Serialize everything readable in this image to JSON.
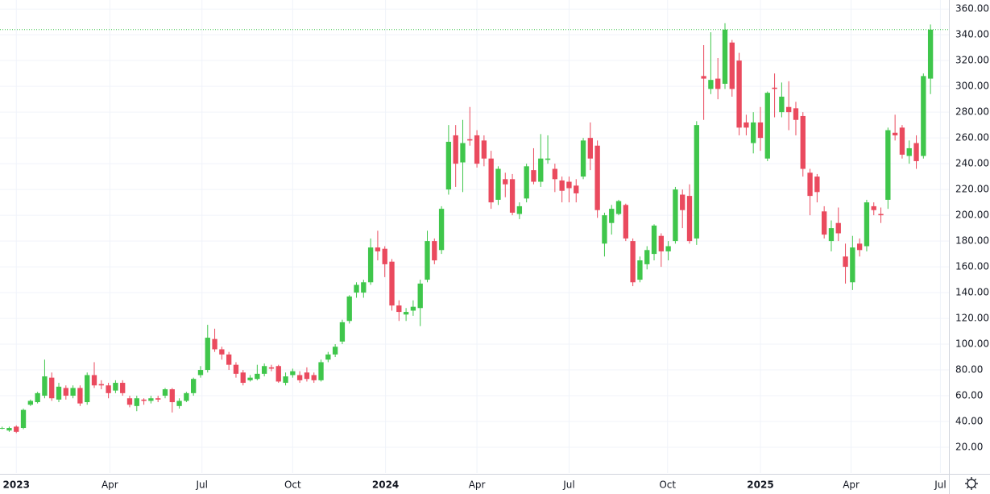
{
  "chart_data": {
    "type": "candlestick",
    "open": [
      35,
      33,
      36,
      35,
      53,
      55,
      60,
      74,
      57,
      66,
      60,
      66,
      55,
      76,
      69,
      68,
      64,
      70,
      58,
      52,
      57,
      56,
      58,
      60,
      65,
      52,
      56,
      62,
      76,
      80,
      104,
      96,
      92,
      84,
      78,
      72,
      73,
      77,
      82,
      83,
      70,
      76,
      76,
      78,
      76,
      72,
      88,
      92,
      102,
      118,
      140,
      140,
      148,
      175,
      174,
      164,
      130,
      123,
      126,
      128,
      150,
      180,
      173,
      220,
      262,
      241,
      259,
      262,
      258,
      244,
      212,
      228,
      228,
      201,
      213,
      235,
      226,
      243,
      236,
      227,
      226,
      223,
      230,
      260,
      254,
      178,
      194,
      201,
      208,
      180,
      150,
      162,
      170,
      184,
      172,
      180,
      216,
      215,
      182,
      308,
      298,
      306,
      302,
      334,
      320,
      272,
      256,
      272,
      244,
      299,
      280,
      284,
      283,
      277,
      233,
      230,
      203,
      180,
      194,
      168,
      148,
      178,
      176,
      207,
      201,
      212,
      264,
      268,
      246,
      256,
      246,
      306
    ],
    "high": [
      36,
      36,
      37,
      50,
      57,
      63,
      88,
      78,
      70,
      68,
      68,
      68,
      78,
      86,
      72,
      70,
      72,
      72,
      60,
      60,
      58,
      60,
      60,
      66,
      66,
      58,
      63,
      74,
      83,
      115,
      112,
      98,
      94,
      86,
      80,
      76,
      84,
      85,
      84,
      84,
      78,
      81,
      79,
      82,
      78,
      88,
      94,
      100,
      119,
      138,
      148,
      150,
      182,
      188,
      176,
      166,
      134,
      128,
      134,
      150,
      188,
      182,
      207,
      270,
      270,
      274,
      284,
      266,
      262,
      250,
      238,
      233,
      232,
      210,
      240,
      252,
      263,
      262,
      240,
      230,
      230,
      228,
      260,
      272,
      258,
      202,
      208,
      212,
      209,
      182,
      168,
      176,
      193,
      186,
      180,
      222,
      220,
      224,
      273,
      332,
      342,
      322,
      349,
      336,
      326,
      278,
      280,
      284,
      296,
      310,
      303,
      304,
      288,
      280,
      236,
      232,
      207,
      196,
      206,
      178,
      184,
      182,
      212,
      210,
      206,
      268,
      278,
      270,
      258,
      262,
      310,
      348
    ],
    "low": [
      34,
      32,
      31,
      34,
      52,
      54,
      58,
      56,
      55,
      57,
      58,
      52,
      53,
      66,
      65,
      58,
      62,
      60,
      51,
      48,
      53,
      54,
      55,
      58,
      47,
      50,
      55,
      60,
      74,
      78,
      94,
      88,
      80,
      74,
      68,
      71,
      72,
      75,
      79,
      70,
      68,
      74,
      70,
      71,
      70,
      71,
      86,
      90,
      100,
      116,
      136,
      136,
      146,
      165,
      152,
      126,
      118,
      118,
      122,
      114,
      148,
      162,
      170,
      216,
      222,
      218,
      254,
      237,
      238,
      205,
      208,
      214,
      200,
      197,
      210,
      224,
      222,
      240,
      218,
      210,
      210,
      210,
      228,
      235,
      198,
      168,
      185,
      200,
      180,
      145,
      148,
      158,
      165,
      160,
      165,
      178,
      190,
      178,
      177,
      274,
      294,
      290,
      298,
      292,
      262,
      262,
      248,
      250,
      242,
      276,
      276,
      266,
      262,
      230,
      200,
      210,
      182,
      172,
      180,
      147,
      142,
      168,
      172,
      200,
      194,
      205,
      258,
      244,
      240,
      236,
      244,
      294
    ],
    "close": [
      35,
      35,
      32,
      49,
      56,
      62,
      75,
      58,
      67,
      60,
      66,
      54,
      76,
      68,
      68,
      62,
      70,
      62,
      53,
      58,
      56,
      58,
      57,
      65,
      55,
      56,
      62,
      73,
      80,
      105,
      96,
      92,
      84,
      77,
      70,
      74,
      77,
      83,
      81,
      71,
      75,
      79,
      72,
      73,
      72,
      86,
      92,
      98,
      117,
      137,
      146,
      148,
      175,
      172,
      162,
      130,
      125,
      125,
      129,
      147,
      180,
      165,
      205,
      257,
      240,
      256,
      258,
      240,
      244,
      210,
      236,
      224,
      202,
      207,
      238,
      226,
      244,
      244,
      228,
      219,
      221,
      217,
      258,
      244,
      204,
      200,
      205,
      211,
      182,
      148,
      165,
      173,
      192,
      172,
      176,
      220,
      204,
      180,
      270,
      306,
      305,
      298,
      344,
      298,
      268,
      268,
      272,
      260,
      295,
      298,
      292,
      280,
      274,
      236,
      215,
      218,
      185,
      190,
      186,
      160,
      175,
      173,
      210,
      204,
      200,
      266,
      262,
      247,
      252,
      242,
      308,
      344
    ],
    "up_color": "#3fc64b",
    "down_color": "#ea4a5e",
    "xlim": [
      -0.3,
      133.6
    ],
    "xticks": [
      {
        "value": 2.0,
        "label": "2023"
      },
      {
        "value": 15.2,
        "label": "Apr"
      },
      {
        "value": 28.2,
        "label": "Jul"
      },
      {
        "value": 41.0,
        "label": "Oct"
      },
      {
        "value": 54.1,
        "label": "2024"
      },
      {
        "value": 67.0,
        "label": "Apr"
      },
      {
        "value": 80.0,
        "label": "Jul"
      },
      {
        "value": 93.9,
        "label": "Oct"
      },
      {
        "value": 107.0,
        "label": "2025"
      },
      {
        "value": 119.8,
        "label": "Apr"
      },
      {
        "value": 132.4,
        "label": "Jul"
      }
    ],
    "ylim": [
      0,
      367
    ],
    "yticks": [
      {
        "value": 20,
        "label": "20.00"
      },
      {
        "value": 40,
        "label": "40.00"
      },
      {
        "value": 60,
        "label": "60.00"
      },
      {
        "value": 80,
        "label": "80.00"
      },
      {
        "value": 100,
        "label": "100.00"
      },
      {
        "value": 120,
        "label": "120.00"
      },
      {
        "value": 140,
        "label": "140.00"
      },
      {
        "value": 160,
        "label": "160.00"
      },
      {
        "value": 180,
        "label": "180.00"
      },
      {
        "value": 200,
        "label": "200.00"
      },
      {
        "value": 220,
        "label": "220.00"
      },
      {
        "value": 240,
        "label": "240.00"
      },
      {
        "value": 260,
        "label": "260.00"
      },
      {
        "value": 280,
        "label": "280.00"
      },
      {
        "value": 300,
        "label": "300.00"
      },
      {
        "value": 320,
        "label": "320.00"
      },
      {
        "value": 340,
        "label": "340.00"
      },
      {
        "value": 360,
        "label": "360.00"
      }
    ],
    "grid": true,
    "last_price_line": true
  }
}
